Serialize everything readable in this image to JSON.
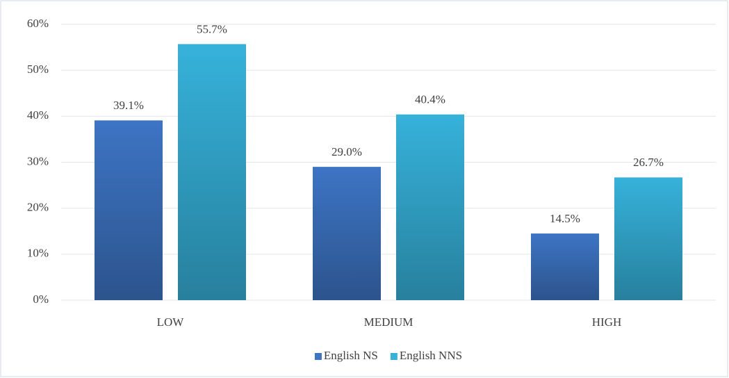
{
  "chart_data": {
    "type": "bar",
    "categories": [
      "LOW",
      "MEDIUM",
      "HIGH"
    ],
    "series": [
      {
        "name": "English NS",
        "color": "#3d74c4",
        "values": [
          39.1,
          29.0,
          14.5
        ],
        "value_labels": [
          "39.1%",
          "29.0%",
          "14.5%"
        ]
      },
      {
        "name": "English NNS",
        "color": "#36b2da",
        "values": [
          55.7,
          40.4,
          26.7
        ],
        "value_labels": [
          "55.7%",
          "40.4%",
          "26.7%"
        ]
      }
    ],
    "ylim": [
      0,
      60
    ],
    "yticks": [
      {
        "value": 0,
        "label": "0%"
      },
      {
        "value": 10,
        "label": "10%"
      },
      {
        "value": 20,
        "label": "20%"
      },
      {
        "value": 30,
        "label": "30%"
      },
      {
        "value": 40,
        "label": "40%"
      },
      {
        "value": 50,
        "label": "50%"
      },
      {
        "value": 60,
        "label": "60%"
      }
    ],
    "grid": true,
    "legend": "bottom"
  }
}
